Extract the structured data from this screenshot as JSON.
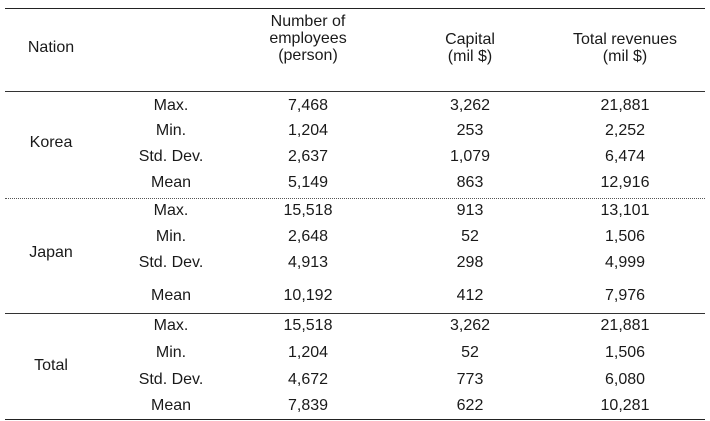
{
  "headers": {
    "nation": "Nation",
    "employees": [
      "Number of",
      "employees",
      "(person)"
    ],
    "capital": [
      "Capital",
      "(mil $)"
    ],
    "revenues": [
      "Total revenues",
      "(mil $)"
    ]
  },
  "groups": [
    {
      "nation": "Korea",
      "rows": [
        {
          "stat": "Max.",
          "employees": "7,468",
          "capital": "3,262",
          "revenues": "21,881"
        },
        {
          "stat": "Min.",
          "employees": "1,204",
          "capital": "253",
          "revenues": "2,252"
        },
        {
          "stat": "Std. Dev.",
          "employees": "2,637",
          "capital": "1,079",
          "revenues": "6,474"
        },
        {
          "stat": "Mean",
          "employees": "5,149",
          "capital": "863",
          "revenues": "12,916"
        }
      ]
    },
    {
      "nation": "Japan",
      "rows": [
        {
          "stat": "Max.",
          "employees": "15,518",
          "capital": "913",
          "revenues": "13,101"
        },
        {
          "stat": "Min.",
          "employees": "2,648",
          "capital": "52",
          "revenues": "1,506"
        },
        {
          "stat": "Std. Dev.",
          "employees": "4,913",
          "capital": "298",
          "revenues": "4,999"
        },
        {
          "stat": "Mean",
          "employees": "10,192",
          "capital": "412",
          "revenues": "7,976"
        }
      ]
    },
    {
      "nation": "Total",
      "rows": [
        {
          "stat": "Max.",
          "employees": "15,518",
          "capital": "3,262",
          "revenues": "21,881"
        },
        {
          "stat": "Min.",
          "employees": "1,204",
          "capital": "52",
          "revenues": "1,506"
        },
        {
          "stat": "Std. Dev.",
          "employees": "4,672",
          "capital": "773",
          "revenues": "6,080"
        },
        {
          "stat": "Mean",
          "employees": "7,839",
          "capital": "622",
          "revenues": "10,281"
        }
      ]
    }
  ]
}
